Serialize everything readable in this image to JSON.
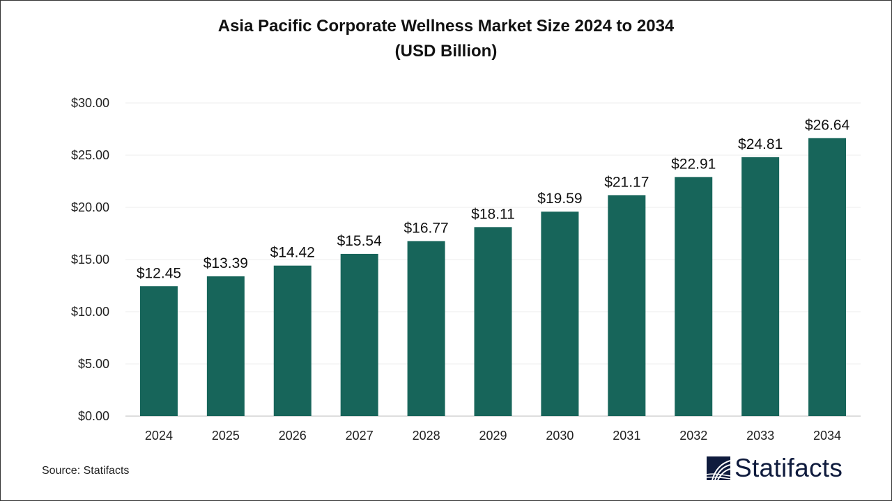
{
  "chart_data": {
    "type": "bar",
    "title": "Asia Pacific Corporate Wellness Market Size 2024 to 2034",
    "subtitle": "(USD Billion)",
    "categories": [
      "2024",
      "2025",
      "2026",
      "2027",
      "2028",
      "2029",
      "2030",
      "2031",
      "2032",
      "2033",
      "2034"
    ],
    "values": [
      12.45,
      13.39,
      14.42,
      15.54,
      16.77,
      18.11,
      19.59,
      21.17,
      22.91,
      24.81,
      26.64
    ],
    "data_labels": [
      "$12.45",
      "$13.39",
      "$14.42",
      "$15.54",
      "$16.77",
      "$18.11",
      "$19.59",
      "$21.17",
      "$22.91",
      "$24.81",
      "$26.64"
    ],
    "y_ticks": [
      "$0.00",
      "$5.00",
      "$10.00",
      "$15.00",
      "$20.00",
      "$25.00",
      "$30.00"
    ],
    "ylim": [
      0,
      30
    ],
    "xlabel": "",
    "ylabel": "",
    "grid": true,
    "bar_color": "#17655a"
  },
  "source": "Source: Statifacts",
  "logo": {
    "text": "Statifacts",
    "color": "#0f1b3d"
  }
}
